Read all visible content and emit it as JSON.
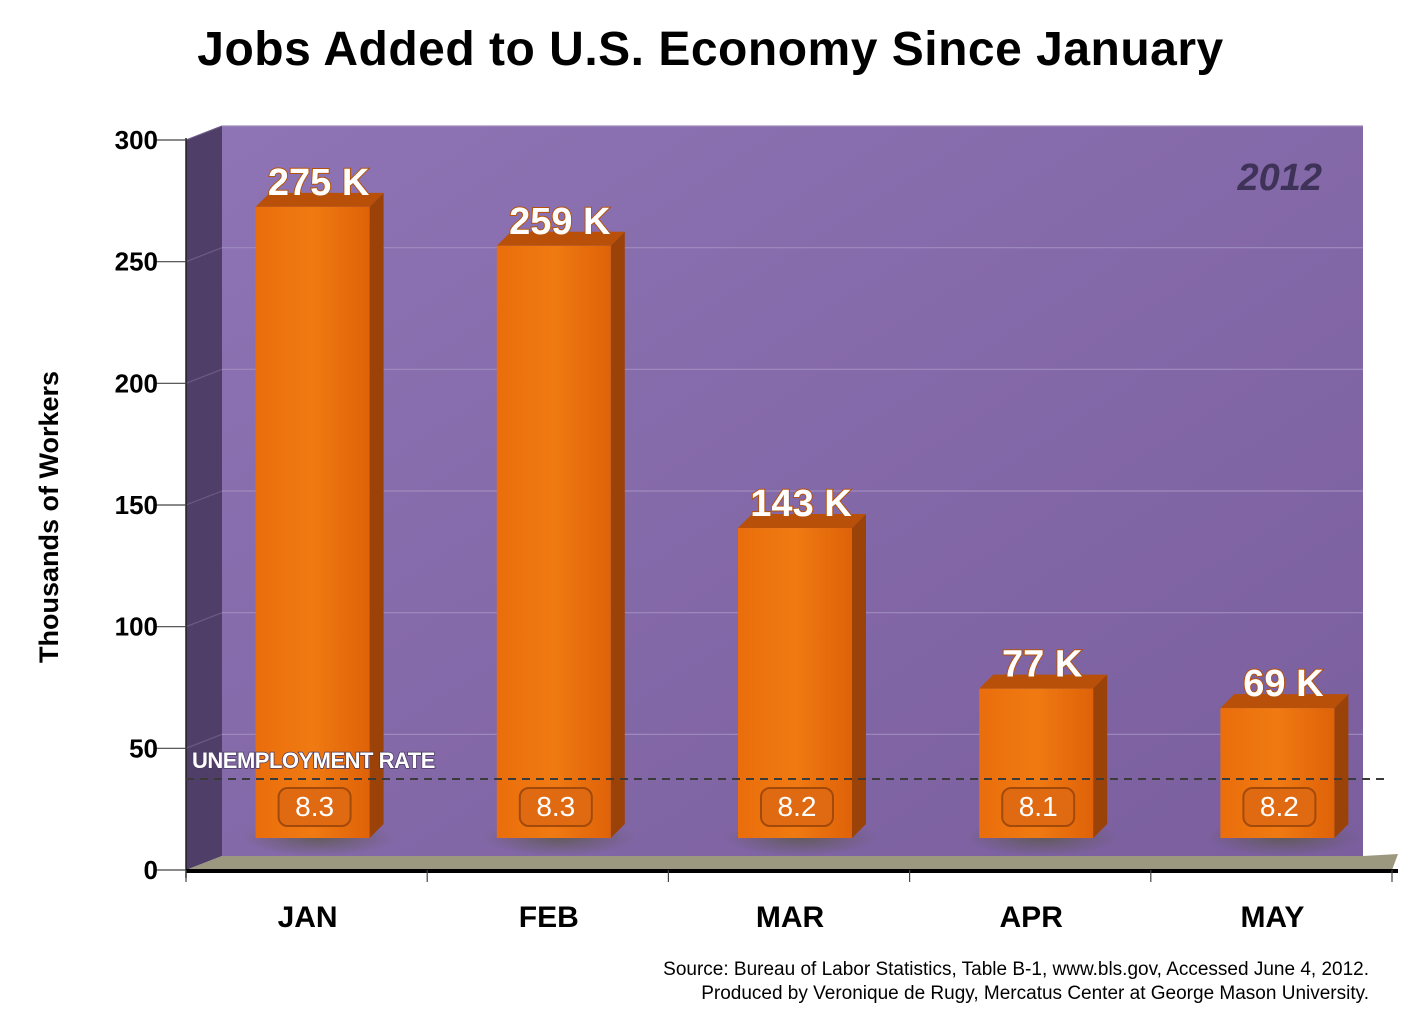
{
  "title": "Jobs Added to U.S. Economy Since January",
  "chart_data": {
    "type": "bar",
    "title": "Jobs Added to U.S. Economy Since January",
    "ylabel": "Thousands of Workers",
    "xlabel": "",
    "ylim": [
      0,
      300
    ],
    "yticks": [
      0,
      50,
      100,
      150,
      200,
      250,
      300
    ],
    "categories": [
      "JAN",
      "FEB",
      "MAR",
      "APR",
      "MAY"
    ],
    "values": [
      275,
      259,
      143,
      77,
      69
    ],
    "value_labels": [
      "275 K",
      "259 K",
      "143 K",
      "77 K",
      "69 K"
    ],
    "annotation": "2012",
    "unemployment": {
      "label": "UNEMPLOYMENT RATE",
      "values": [
        8.3,
        8.3,
        8.2,
        8.1,
        8.2
      ],
      "labels": [
        "8.3",
        "8.3",
        "8.2",
        "8.1",
        "8.2"
      ]
    },
    "colors": {
      "bar": "#e4670a",
      "bar_top": "#b8500a",
      "bar_side": "#9a4208",
      "back_wall": "#8468a8",
      "side_wall": "#4f3f68",
      "floor": "#9c9880"
    },
    "grid": true
  },
  "source": {
    "line1": "Source: Bureau of Labor Statistics, Table B-1, www.bls.gov, Accessed June 4, 2012.",
    "line2": "Produced by Veronique de Rugy, Mercatus Center at George Mason University."
  }
}
